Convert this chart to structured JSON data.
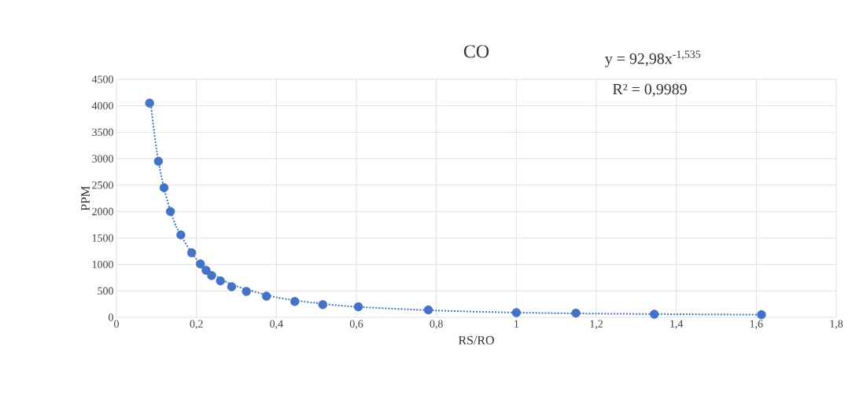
{
  "chart_data": {
    "type": "scatter",
    "title": "CO",
    "xlabel": "RS/RO",
    "ylabel": "PPM",
    "annotations": [
      "y = 92,98x$^{-1,535}$",
      "R² = 0,9989"
    ],
    "xlim": [
      0,
      1.8
    ],
    "ylim": [
      0,
      4500
    ],
    "xticks": [
      0,
      {
        "value": 0.2,
        "label": "0,2"
      },
      {
        "value": 0.4,
        "label": "0,4"
      },
      {
        "value": 0.6,
        "label": "0,6"
      },
      {
        "value": 0.8,
        "label": "0,8"
      },
      1,
      {
        "value": 1.2,
        "label": "1,2"
      },
      {
        "value": 1.4,
        "label": "1,4"
      },
      {
        "value": 1.6,
        "label": "1,6"
      },
      {
        "value": 1.8,
        "label": "1,8"
      }
    ],
    "yticks": [
      0,
      500,
      1000,
      1500,
      2000,
      2500,
      3000,
      3500,
      4000,
      4500
    ],
    "grid": true,
    "series": [
      {
        "color": "#4472c4",
        "marker": "circle",
        "x": [
          0.083,
          0.105,
          0.119,
          0.135,
          0.161,
          0.188,
          0.21,
          0.224,
          0.238,
          0.26,
          0.288,
          0.325,
          0.375,
          0.446,
          0.516,
          0.605,
          0.78,
          1.0,
          1.149,
          1.345,
          1.613
        ],
        "values": [
          4050,
          2950,
          2450,
          2000,
          1560,
          1220,
          1010,
          890,
          790,
          690,
          580,
          490,
          400,
          300,
          240,
          200,
          140,
          90,
          80,
          60,
          50
        ]
      },
      {
        "type": "line",
        "color": "#4472c4",
        "marker": "none",
        "line_style": "dotted",
        "x": [
          0.085,
          0.1,
          0.12,
          0.15,
          0.2,
          0.25,
          0.3,
          0.4,
          0.5,
          0.6,
          0.8,
          1.0,
          1.2,
          1.4,
          1.613
        ],
        "values": [
          4090,
          3190,
          2410,
          1710,
          1100,
          780,
          590,
          380,
          270,
          200,
          130,
          90,
          70,
          60,
          50
        ]
      }
    ]
  }
}
